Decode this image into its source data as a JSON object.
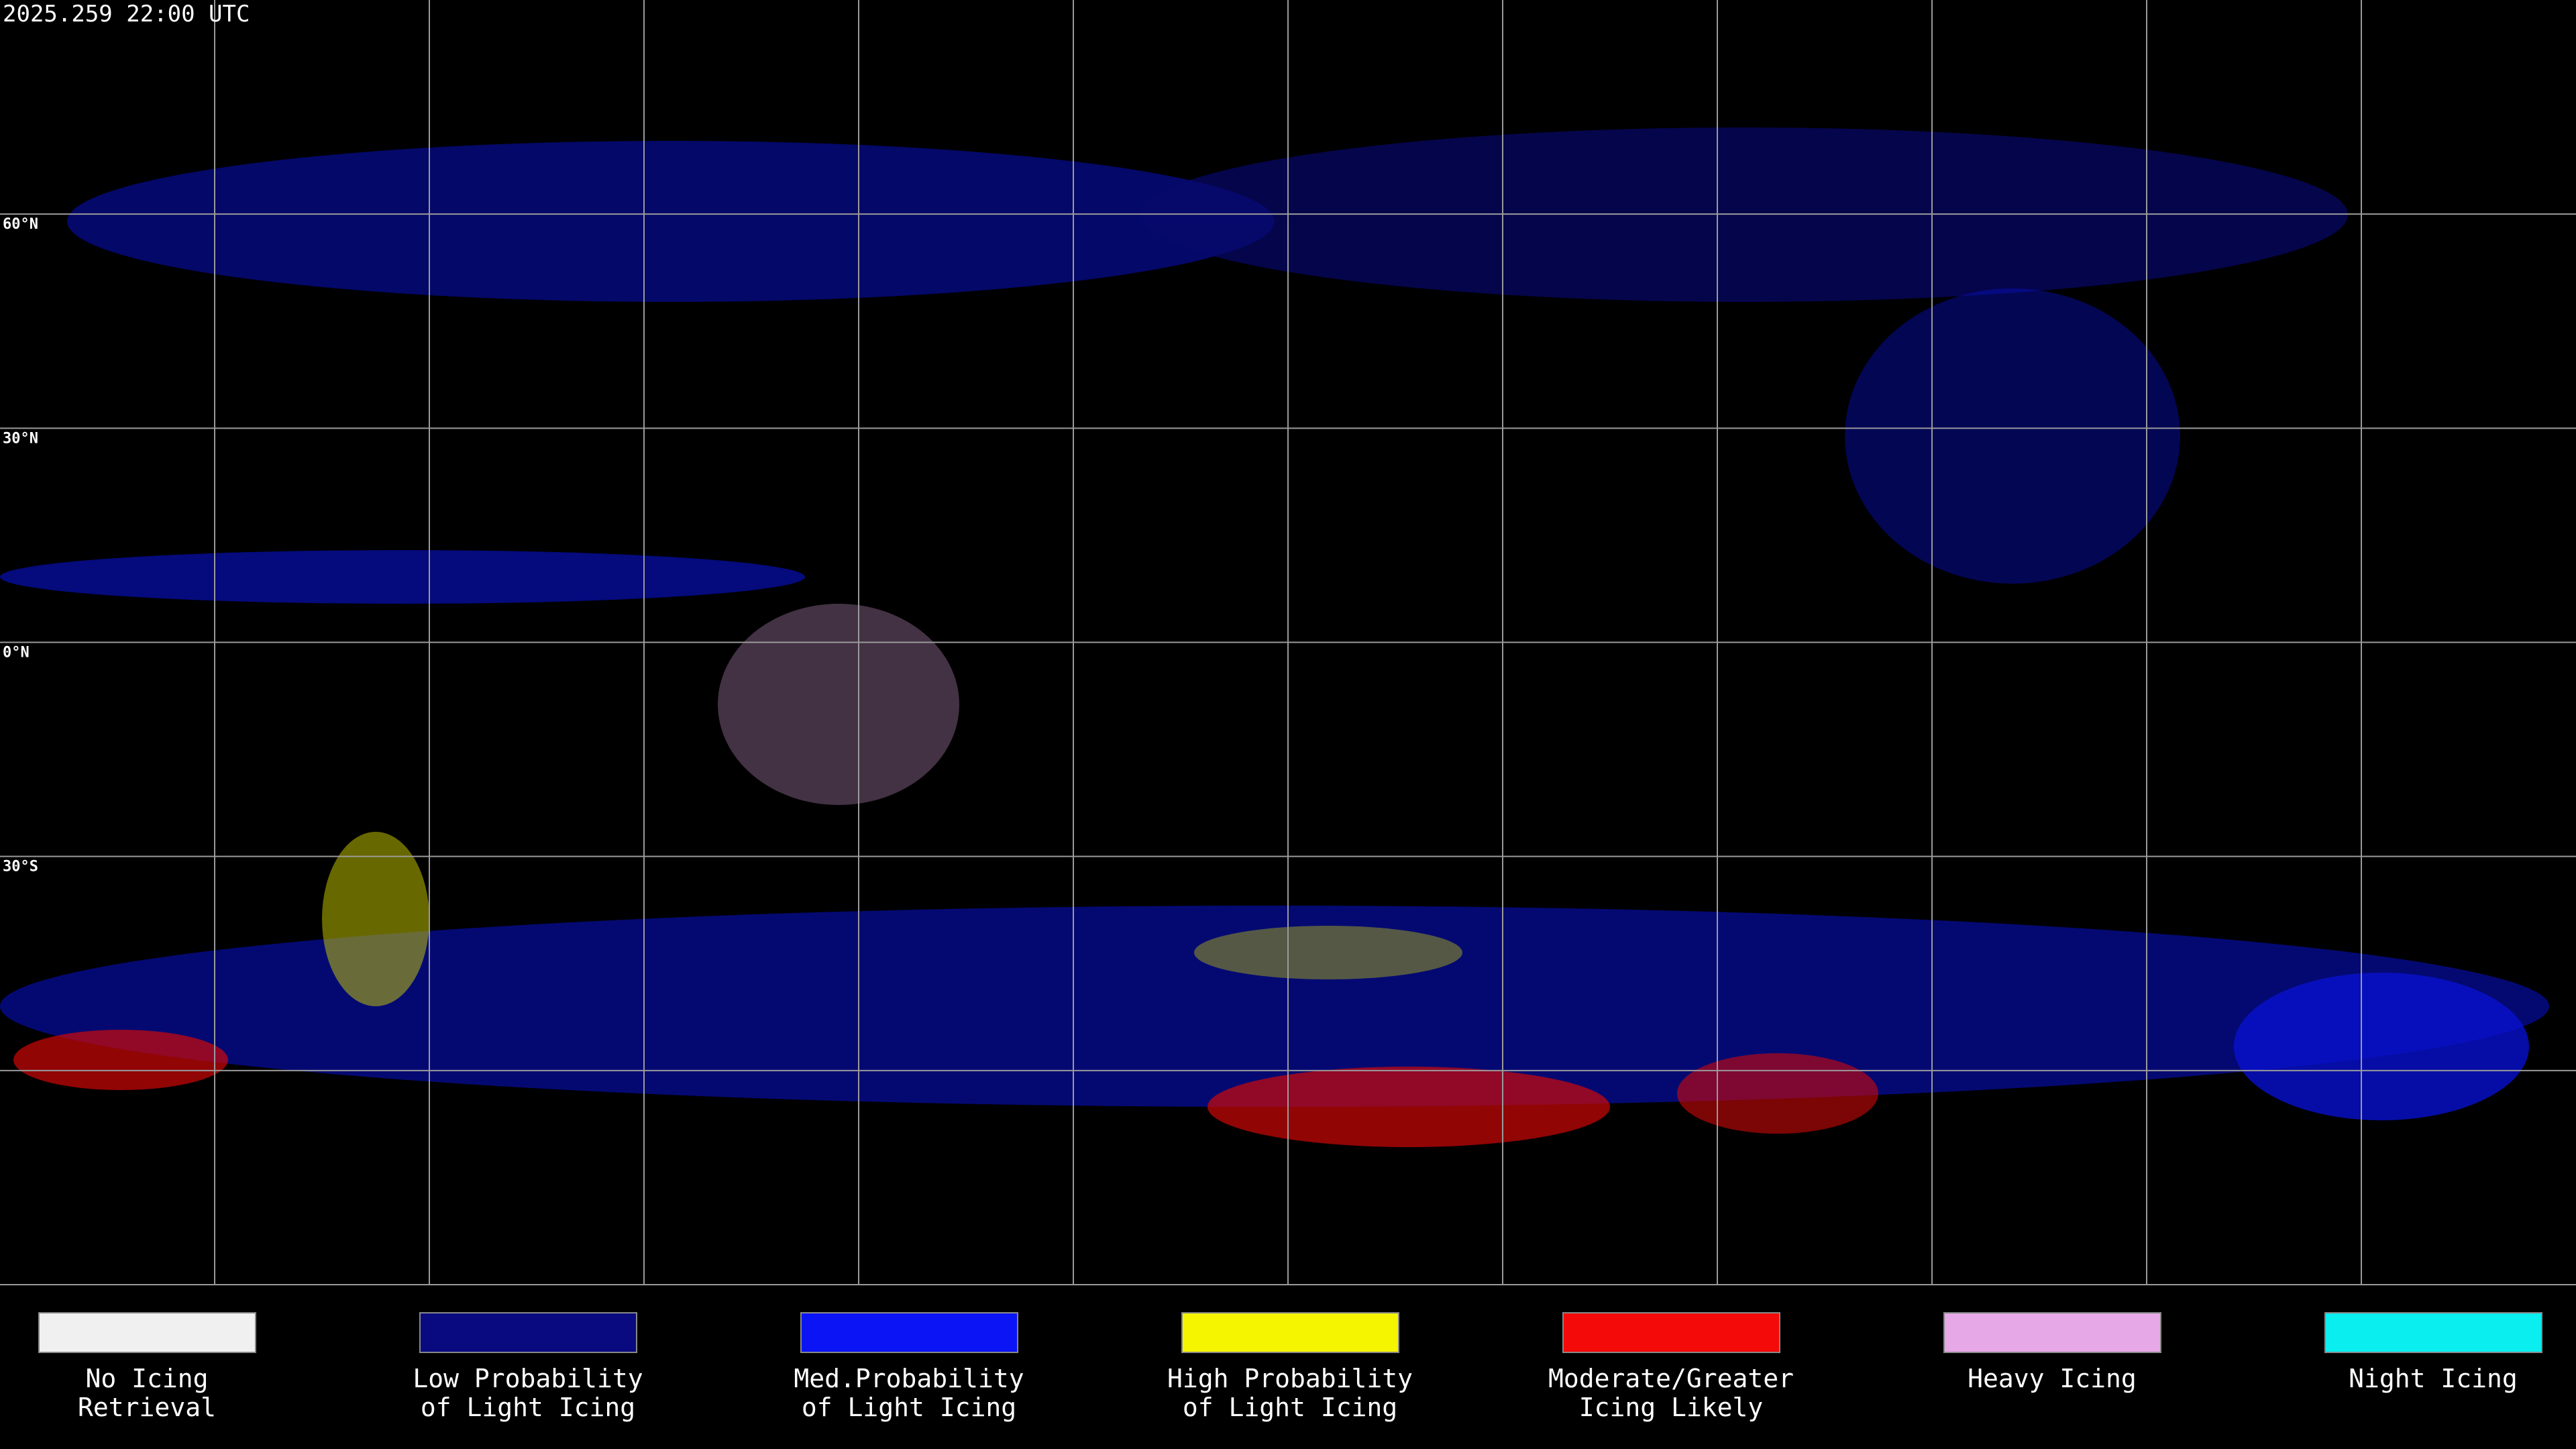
{
  "header": {
    "timestamp": "2025.259 22:00 UTC"
  },
  "latitude_labels": [
    "60°N",
    "30°N",
    "0°N",
    "30°S"
  ],
  "legend": [
    {
      "lines": [
        "No Icing",
        "Retrieval"
      ],
      "color": "#f0f0f0"
    },
    {
      "lines": [
        "Low Probability",
        "of Light Icing"
      ],
      "color": "#0a0a80"
    },
    {
      "lines": [
        "Med.Probability",
        "of Light Icing"
      ],
      "color": "#0a14f5"
    },
    {
      "lines": [
        "High Probability",
        "of Light Icing"
      ],
      "color": "#f5f500"
    },
    {
      "lines": [
        "Moderate/Greater",
        "Icing Likely"
      ],
      "color": "#f50a0a"
    },
    {
      "lines": [
        "Heavy Icing"
      ],
      "color": "#e6a8e6"
    },
    {
      "lines": [
        "Night Icing"
      ],
      "color": "#0aeef0"
    }
  ]
}
